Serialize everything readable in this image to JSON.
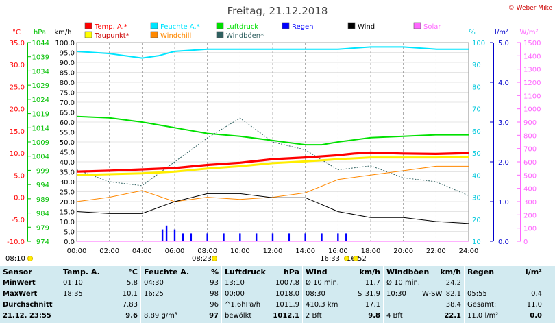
{
  "title": "Freitag, 21.12.2018",
  "copyright": "© Weber Mike",
  "legend": [
    {
      "label": "Temp. A.*",
      "color": "#ff0000"
    },
    {
      "label": "Feuchte A.*",
      "color": "#00e5ff"
    },
    {
      "label": "Luftdruck",
      "color": "#00e000"
    },
    {
      "label": "Regen",
      "color": "#0000ff"
    },
    {
      "label": "Wind",
      "color": "#000000"
    },
    {
      "label": "Solar",
      "color": "#ff66ff"
    },
    {
      "label": "Taupunkt*",
      "color": "#ffff00"
    },
    {
      "label": "Windchill",
      "color": "#ff8800"
    },
    {
      "label": "Windböen*",
      "color": "#2f6060"
    }
  ],
  "axes": {
    "temp": {
      "unit": "°C",
      "ticks": [
        "35.0",
        "30.0",
        "25.0",
        "20.0",
        "15.0",
        "10.0",
        "5.0",
        "0.0",
        "-5.0",
        "-10.0"
      ],
      "color": "#ff0000"
    },
    "pressure": {
      "unit": "hPa",
      "ticks": [
        "1044",
        "1039",
        "1034",
        "1029",
        "1024",
        "1019",
        "1014",
        "1009",
        "1004",
        "999",
        "994",
        "989",
        "984",
        "979",
        "974"
      ],
      "color": "#00c000"
    },
    "wind": {
      "unit": "km/h",
      "ticks": [
        "100.0",
        "95.0",
        "90.0",
        "85.0",
        "80.0",
        "75.0",
        "70.0",
        "65.0",
        "60.0",
        "55.0",
        "50.0",
        "45.0",
        "40.0",
        "35.0",
        "30.0",
        "25.0",
        "20.0",
        "15.0",
        "10.0",
        "5.0",
        "0.0"
      ],
      "color": "#000000"
    },
    "humidity": {
      "unit": "%",
      "ticks": [
        "100",
        "90",
        "80",
        "70",
        "60",
        "50",
        "40",
        "30",
        "20",
        "10"
      ],
      "color": "#00c8dc"
    },
    "rain": {
      "unit": "l/m²",
      "ticks": [
        "5.0",
        "4.0",
        "3.0",
        "2.0",
        "1.0",
        "0.0"
      ],
      "color": "#0000cc"
    },
    "solar": {
      "unit": "W/m²",
      "ticks": [
        "1500",
        "1400",
        "1300",
        "1200",
        "1100",
        "1000",
        "900",
        "800",
        "700",
        "600",
        "500",
        "400",
        "300",
        "200",
        "100",
        "0"
      ],
      "color": "#ff66ff"
    },
    "time": {
      "ticks": [
        "00:00",
        "02:00",
        "04:00",
        "06:00",
        "08:00",
        "10:00",
        "12:00",
        "14:00",
        "16:00",
        "18:00",
        "20:00",
        "22:00",
        "24:00"
      ]
    }
  },
  "sun_events": [
    {
      "label": "08:10"
    },
    {
      "label": "08:23"
    },
    {
      "label": "16:33"
    },
    {
      "label": "16:52"
    }
  ],
  "chart_data": {
    "type": "line",
    "title": "Freitag, 21.12.2018",
    "x_range": [
      "00:00",
      "24:00"
    ],
    "series": [
      {
        "name": "Temp. A.*",
        "unit": "°C",
        "points": [
          [
            0,
            5.8
          ],
          [
            2,
            6.0
          ],
          [
            4,
            6.3
          ],
          [
            6,
            6.6
          ],
          [
            8,
            7.3
          ],
          [
            10,
            7.8
          ],
          [
            12,
            8.6
          ],
          [
            14,
            9.0
          ],
          [
            16,
            9.5
          ],
          [
            17,
            9.9
          ],
          [
            18,
            10.1
          ],
          [
            20,
            9.9
          ],
          [
            22,
            9.8
          ],
          [
            24,
            10.0
          ]
        ]
      },
      {
        "name": "Taupunkt*",
        "unit": "°C",
        "points": [
          [
            0,
            5.0
          ],
          [
            2,
            5.2
          ],
          [
            4,
            5.4
          ],
          [
            6,
            5.8
          ],
          [
            8,
            6.5
          ],
          [
            10,
            7.0
          ],
          [
            12,
            7.7
          ],
          [
            14,
            8.1
          ],
          [
            16,
            8.6
          ],
          [
            18,
            9.0
          ],
          [
            20,
            9.0
          ],
          [
            22,
            9.0
          ],
          [
            24,
            9.1
          ]
        ]
      },
      {
        "name": "Feuchte A.*",
        "unit": "%",
        "points": [
          [
            0,
            96
          ],
          [
            2,
            95
          ],
          [
            4,
            93
          ],
          [
            5,
            94
          ],
          [
            6,
            96
          ],
          [
            8,
            97
          ],
          [
            10,
            97
          ],
          [
            12,
            97
          ],
          [
            14,
            97
          ],
          [
            16,
            97
          ],
          [
            18,
            98
          ],
          [
            20,
            98
          ],
          [
            22,
            97
          ],
          [
            24,
            97
          ]
        ]
      },
      {
        "name": "Luftdruck",
        "unit": "hPa",
        "points": [
          [
            0,
            1018
          ],
          [
            2,
            1017.5
          ],
          [
            4,
            1016
          ],
          [
            6,
            1014
          ],
          [
            8,
            1012
          ],
          [
            10,
            1011
          ],
          [
            12,
            1009.5
          ],
          [
            14,
            1008
          ],
          [
            15,
            1008
          ],
          [
            16,
            1009
          ],
          [
            18,
            1010.5
          ],
          [
            20,
            1011
          ],
          [
            22,
            1011.5
          ],
          [
            24,
            1011.5
          ]
        ]
      },
      {
        "name": "Windchill",
        "unit": "°C",
        "points": [
          [
            0,
            -1
          ],
          [
            2,
            0
          ],
          [
            4,
            1.5
          ],
          [
            6,
            -1
          ],
          [
            8,
            0
          ],
          [
            10,
            -0.5
          ],
          [
            12,
            0
          ],
          [
            14,
            1
          ],
          [
            16,
            4
          ],
          [
            18,
            5
          ],
          [
            20,
            6
          ],
          [
            22,
            7
          ],
          [
            24,
            7
          ]
        ]
      },
      {
        "name": "Wind",
        "unit": "km/h",
        "points": [
          [
            0,
            15
          ],
          [
            2,
            14
          ],
          [
            4,
            14
          ],
          [
            6,
            20
          ],
          [
            8,
            24
          ],
          [
            10,
            24
          ],
          [
            12,
            22
          ],
          [
            14,
            22
          ],
          [
            16,
            15
          ],
          [
            18,
            12
          ],
          [
            20,
            12
          ],
          [
            22,
            10
          ],
          [
            24,
            9
          ]
        ]
      },
      {
        "name": "Windböen*",
        "unit": "km/h",
        "points": [
          [
            0,
            36
          ],
          [
            2,
            30
          ],
          [
            4,
            28
          ],
          [
            6,
            40
          ],
          [
            8,
            52
          ],
          [
            10,
            62
          ],
          [
            12,
            50
          ],
          [
            14,
            46
          ],
          [
            16,
            36
          ],
          [
            18,
            38
          ],
          [
            20,
            32
          ],
          [
            22,
            30
          ],
          [
            24,
            23
          ]
        ]
      },
      {
        "name": "Regen",
        "unit": "l/m²",
        "points": [
          [
            5.25,
            0.3
          ],
          [
            5.5,
            0.4
          ],
          [
            6,
            0.3
          ],
          [
            6.5,
            0.2
          ],
          [
            7,
            0.2
          ],
          [
            8,
            0.2
          ],
          [
            9,
            0.2
          ],
          [
            10,
            0.2
          ],
          [
            11,
            0.2
          ],
          [
            12,
            0.2
          ],
          [
            13,
            0.2
          ],
          [
            14,
            0.2
          ],
          [
            15,
            0.2
          ],
          [
            16,
            0.2
          ],
          [
            16.5,
            0.2
          ]
        ]
      },
      {
        "name": "Solar",
        "unit": "W/m²",
        "points": [
          [
            0,
            0
          ],
          [
            8.4,
            0
          ],
          [
            12,
            0
          ],
          [
            16.6,
            0
          ],
          [
            24,
            0
          ]
        ]
      }
    ]
  },
  "table": {
    "sensor": {
      "header": "Sensor",
      "rows": [
        "MinWert",
        "MaxWert",
        "Durchschnitt",
        "21.12. 23:55"
      ]
    },
    "temp": {
      "header": "Temp. A.",
      "unit": "°C",
      "rows": [
        [
          "01:10",
          "5.8"
        ],
        [
          "18:35",
          "10.1"
        ],
        [
          "",
          "7.83"
        ],
        [
          "",
          "9.6"
        ]
      ]
    },
    "feuchte": {
      "header": "Feuchte A.",
      "unit": "%",
      "rows": [
        [
          "04:30",
          "93"
        ],
        [
          "16:25",
          "98"
        ],
        [
          "",
          "96"
        ],
        [
          "8.89 g/m³",
          "97"
        ]
      ]
    },
    "luftdruck": {
      "header": "Luftdruck",
      "unit": "hPa",
      "rows": [
        [
          "13:10",
          "1007.8"
        ],
        [
          "00:00",
          "1018.0"
        ],
        [
          "^1.6hPa/h",
          "1011.9"
        ],
        [
          "bewölkt",
          "1012.1"
        ]
      ]
    },
    "wind": {
      "header": "Wind",
      "unit": "km/h",
      "rows": [
        [
          "Ø 10 min.",
          "",
          "11.7"
        ],
        [
          "08:30",
          "S",
          "31.9"
        ],
        [
          "410.3 km",
          "",
          "17.1"
        ],
        [
          "2 Bft",
          "",
          "9.8"
        ]
      ]
    },
    "windboeen": {
      "header": "Windböen",
      "unit": "km/h",
      "rows": [
        [
          "Ø 10 min.",
          "",
          "24.2"
        ],
        [
          "10:30",
          "W-SW",
          "82.1"
        ],
        [
          "",
          "",
          "38.4"
        ],
        [
          "4 Bft",
          "",
          "22.1"
        ]
      ]
    },
    "regen": {
      "header": "Regen",
      "unit": "l/m²",
      "rows": [
        [
          "",
          ""
        ],
        [
          "05:55",
          "0.4"
        ],
        [
          "Gesamt:",
          "11.0"
        ],
        [
          "11.0 l/m²",
          "0.0"
        ]
      ]
    }
  }
}
